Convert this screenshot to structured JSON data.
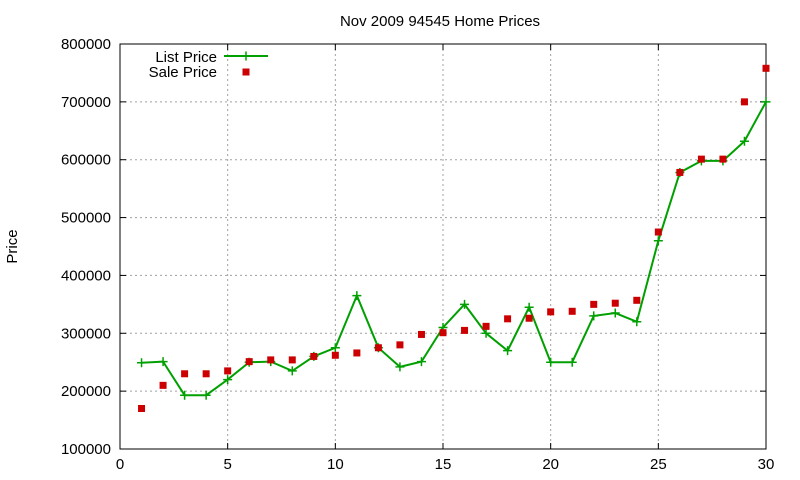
{
  "chart_data": {
    "type": "line",
    "title": "Nov 2009 94545 Home Prices",
    "xlabel": "",
    "ylabel": "Price",
    "xlim": [
      0,
      30
    ],
    "ylim": [
      100000,
      800000
    ],
    "x_ticks": [
      0,
      5,
      10,
      15,
      20,
      25,
      30
    ],
    "y_ticks": [
      100000,
      200000,
      300000,
      400000,
      500000,
      600000,
      700000,
      800000
    ],
    "grid": true,
    "legend_position": "top-left",
    "series": [
      {
        "name": "List Price",
        "style": "line-with-plus-markers",
        "color": "#00a000",
        "x": [
          1,
          2,
          3,
          4,
          5,
          6,
          7,
          8,
          9,
          10,
          11,
          12,
          13,
          14,
          15,
          16,
          17,
          18,
          19,
          20,
          21,
          22,
          23,
          24,
          25,
          26,
          27,
          28,
          29,
          30
        ],
        "values": [
          249000,
          251000,
          193000,
          193000,
          220000,
          250000,
          251000,
          235000,
          260000,
          275000,
          365000,
          275000,
          242000,
          251000,
          310000,
          350000,
          300000,
          270000,
          345000,
          250000,
          250000,
          330000,
          335000,
          320000,
          460000,
          578000,
          598000,
          598000,
          632000,
          700000
        ]
      },
      {
        "name": "Sale Price",
        "style": "square-markers",
        "color": "#cc0000",
        "x": [
          1,
          2,
          3,
          4,
          5,
          6,
          7,
          8,
          9,
          10,
          11,
          12,
          13,
          14,
          15,
          16,
          17,
          18,
          19,
          20,
          21,
          22,
          23,
          24,
          25,
          26,
          27,
          28,
          29,
          30
        ],
        "values": [
          170000,
          210000,
          230000,
          230000,
          235000,
          251000,
          254000,
          254000,
          260000,
          262000,
          266000,
          275000,
          280000,
          298000,
          301000,
          305000,
          312000,
          325000,
          326000,
          337000,
          338000,
          350000,
          352000,
          357000,
          475000,
          578000,
          601000,
          601000,
          700000,
          758000
        ]
      }
    ]
  }
}
